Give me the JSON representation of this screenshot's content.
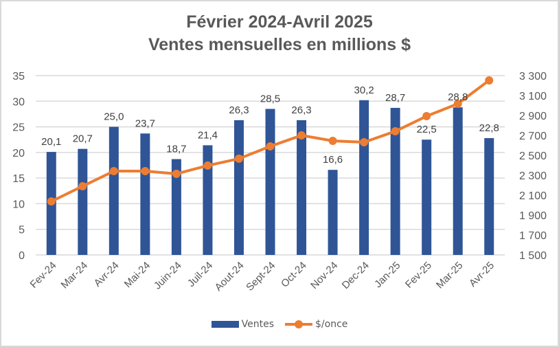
{
  "chart_data": {
    "type": "bar",
    "title_lines": [
      "Février 2024-Avril 2025",
      "Ventes mensuelles en millions $"
    ],
    "categories": [
      "Fev-24",
      "Mar-24",
      "Avr-24",
      "Mai-24",
      "Juin-24",
      "Juil-24",
      "Aout-24",
      "Sept-24",
      "Oct-24",
      "Nov-24",
      "Dec-24",
      "Jan-25",
      "Fev-25",
      "Mar-25",
      "Avr-25"
    ],
    "series": [
      {
        "name": "Ventes",
        "type": "bar",
        "axis": "left",
        "color": "#2F5597",
        "values": [
          20.1,
          20.7,
          25.0,
          23.7,
          18.7,
          21.4,
          26.3,
          28.5,
          26.3,
          16.6,
          30.2,
          28.7,
          22.5,
          28.8,
          22.8
        ],
        "labels": [
          "20,1",
          "20,7",
          "25,0",
          "23,7",
          "18,7",
          "21,4",
          "26,3",
          "28,5",
          "26,3",
          "16,6",
          "30,2",
          "28,7",
          "22,5",
          "28,8",
          "22,8"
        ]
      },
      {
        "name": "$/once",
        "type": "line",
        "axis": "right",
        "color": "#ED7D31",
        "values": [
          2037,
          2190,
          2341,
          2341,
          2314,
          2397,
          2466,
          2590,
          2700,
          2645,
          2631,
          2741,
          2893,
          3017,
          3252
        ]
      }
    ],
    "y_left": {
      "min": 0,
      "max": 35,
      "step": 5,
      "ticks": [
        "0",
        "5",
        "10",
        "15",
        "20",
        "25",
        "30",
        "35"
      ]
    },
    "y_right": {
      "min": 1500,
      "max": 3300,
      "step": 200,
      "ticks": [
        "1 500",
        "1 700",
        "1 900",
        "2 100",
        "2 300",
        "2 500",
        "2 700",
        "2 900",
        "3 100",
        "3 300"
      ]
    },
    "xlabel": "",
    "ylabel": "",
    "grid": true,
    "legend_position": "bottom",
    "legend": [
      "Ventes",
      "$/once"
    ]
  }
}
